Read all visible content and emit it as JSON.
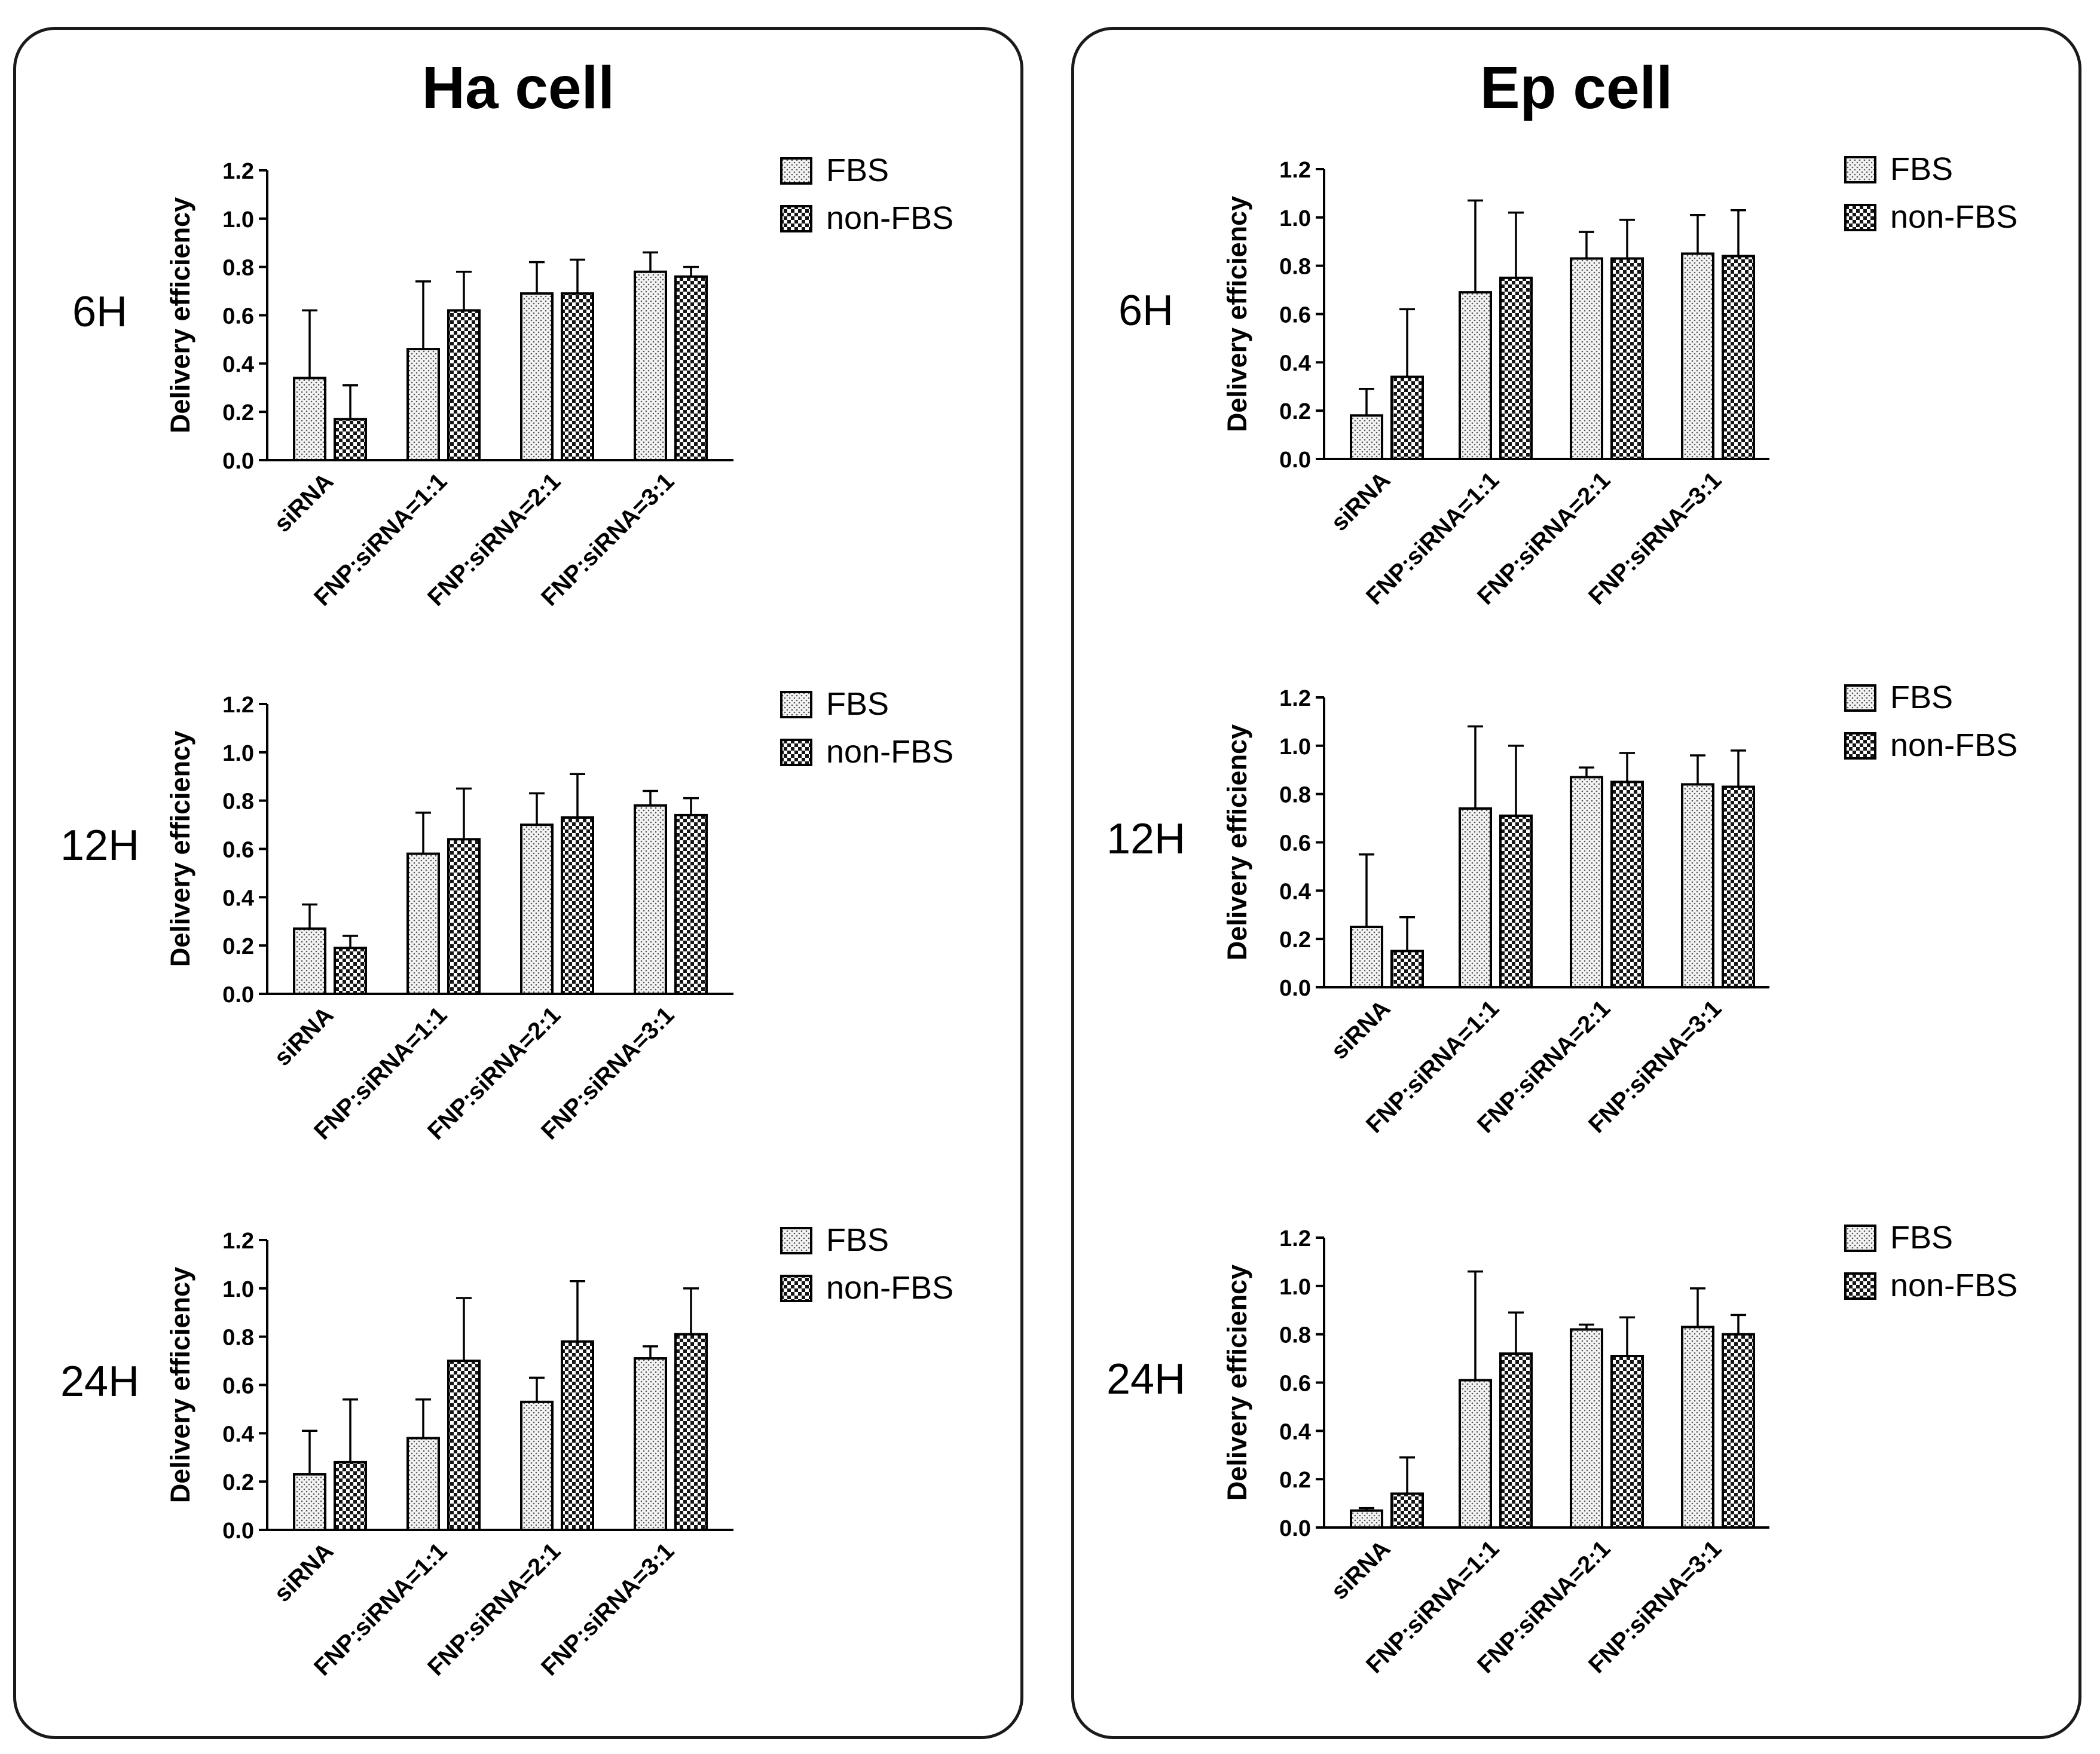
{
  "chart_data": [
    {
      "type": "bar",
      "panel_title": "Ha cell",
      "legend": [
        "FBS",
        "non-FBS"
      ],
      "categories": [
        "siRNA",
        "FNP:siRNA=1:1",
        "FNP:siRNA=2:1",
        "FNP:siRNA=3:1"
      ],
      "ylabel": "Delivery efficiency",
      "ylim": [
        0,
        1.2
      ],
      "yticks": [
        "0.0",
        "0.2",
        "0.4",
        "0.6",
        "0.8",
        "1.0",
        "1.2"
      ],
      "subplots": [
        {
          "label": "6H",
          "series": [
            {
              "name": "FBS",
              "values": [
                0.34,
                0.46,
                0.69,
                0.78
              ],
              "errors": [
                0.28,
                0.28,
                0.13,
                0.08
              ]
            },
            {
              "name": "non-FBS",
              "values": [
                0.17,
                0.62,
                0.69,
                0.76
              ],
              "errors": [
                0.14,
                0.16,
                0.14,
                0.04
              ]
            }
          ]
        },
        {
          "label": "12H",
          "series": [
            {
              "name": "FBS",
              "values": [
                0.27,
                0.58,
                0.7,
                0.78
              ],
              "errors": [
                0.1,
                0.17,
                0.13,
                0.06
              ]
            },
            {
              "name": "non-FBS",
              "values": [
                0.19,
                0.64,
                0.73,
                0.74
              ],
              "errors": [
                0.05,
                0.21,
                0.18,
                0.07
              ]
            }
          ]
        },
        {
          "label": "24H",
          "series": [
            {
              "name": "FBS",
              "values": [
                0.23,
                0.38,
                0.53,
                0.71
              ],
              "errors": [
                0.18,
                0.16,
                0.1,
                0.05
              ]
            },
            {
              "name": "non-FBS",
              "values": [
                0.28,
                0.7,
                0.78,
                0.81
              ],
              "errors": [
                0.26,
                0.26,
                0.25,
                0.19
              ]
            }
          ]
        }
      ]
    },
    {
      "type": "bar",
      "panel_title": "Ep cell",
      "legend": [
        "FBS",
        "non-FBS"
      ],
      "categories": [
        "siRNA",
        "FNP:siRNA=1:1",
        "FNP:siRNA=2:1",
        "FNP:siRNA=3:1"
      ],
      "ylabel": "Delivery efficiency",
      "ylim": [
        0,
        1.2
      ],
      "yticks": [
        "0.0",
        "0.2",
        "0.4",
        "0.6",
        "0.8",
        "1.0",
        "1.2"
      ],
      "subplots": [
        {
          "label": "6H",
          "series": [
            {
              "name": "FBS",
              "values": [
                0.18,
                0.69,
                0.83,
                0.85
              ],
              "errors": [
                0.11,
                0.38,
                0.11,
                0.16
              ]
            },
            {
              "name": "non-FBS",
              "values": [
                0.34,
                0.75,
                0.83,
                0.84
              ],
              "errors": [
                0.28,
                0.27,
                0.16,
                0.19
              ]
            }
          ]
        },
        {
          "label": "12H",
          "series": [
            {
              "name": "FBS",
              "values": [
                0.25,
                0.74,
                0.87,
                0.84
              ],
              "errors": [
                0.3,
                0.34,
                0.04,
                0.12
              ]
            },
            {
              "name": "non-FBS",
              "values": [
                0.15,
                0.71,
                0.85,
                0.83
              ],
              "errors": [
                0.14,
                0.29,
                0.12,
                0.15
              ]
            }
          ]
        },
        {
          "label": "24H",
          "series": [
            {
              "name": "FBS",
              "values": [
                0.07,
                0.61,
                0.82,
                0.83
              ],
              "errors": [
                0.01,
                0.45,
                0.02,
                0.16
              ]
            },
            {
              "name": "non-FBS",
              "values": [
                0.14,
                0.72,
                0.71,
                0.8
              ],
              "errors": [
                0.15,
                0.17,
                0.16,
                0.08
              ]
            }
          ]
        }
      ]
    }
  ]
}
